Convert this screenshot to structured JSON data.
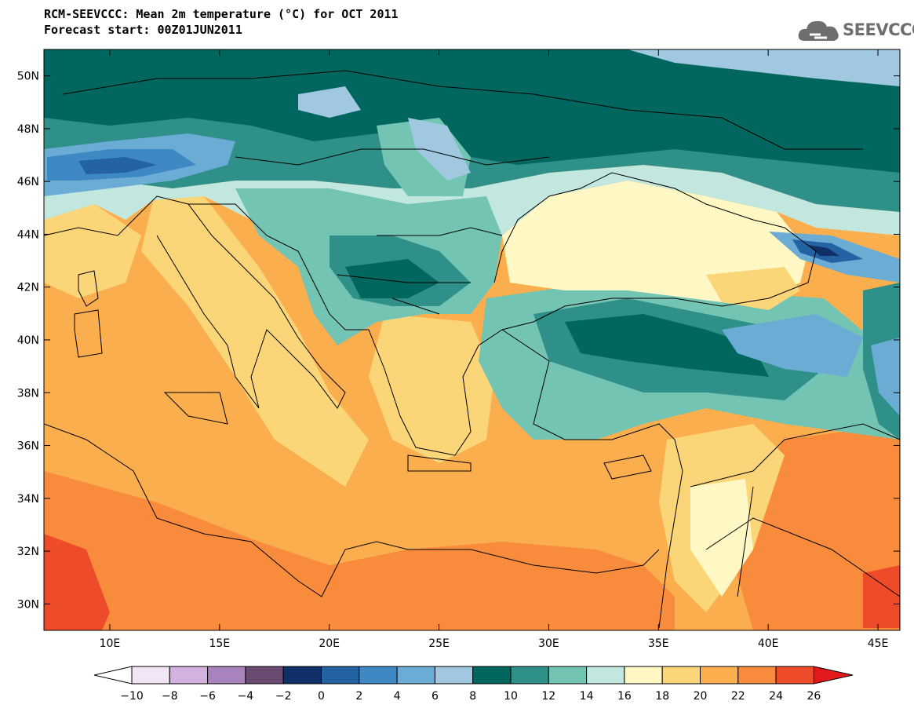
{
  "title": {
    "line1": "RCM-SEEVCCC: Mean 2m temperature (°C) for OCT 2011",
    "line2": "Forecast start: 00Z01JUN2011"
  },
  "logo": {
    "text": "SEEVCCC",
    "icon": "cloud-icon"
  },
  "map": {
    "lon_range": [
      7,
      46
    ],
    "lat_range": [
      29,
      51
    ],
    "x_ticks": [
      "10E",
      "15E",
      "20E",
      "25E",
      "30E",
      "35E",
      "40E",
      "45E"
    ],
    "y_ticks": [
      "50N",
      "48N",
      "46N",
      "44N",
      "42N",
      "40N",
      "38N",
      "36N",
      "34N",
      "32N",
      "30N"
    ]
  },
  "colorbar": {
    "labels": [
      "-10",
      "-8",
      "-6",
      "-4",
      "-2",
      "0",
      "2",
      "4",
      "6",
      "8",
      "10",
      "12",
      "14",
      "16",
      "18",
      "20",
      "22",
      "24",
      "26"
    ],
    "colors": [
      "#f1e6f5",
      "#d4b2e0",
      "#a883bd",
      "#6a4a71",
      "#0f2f66",
      "#2362a3",
      "#3e89c3",
      "#6aacd4",
      "#a0c8e0",
      "#00665e",
      "#2e9088",
      "#74c4b4",
      "#c2e7df",
      "#fff8c4",
      "#fbd679",
      "#fbae4e",
      "#f98c3c",
      "#ee4b2b"
    ],
    "low_color": "#ffffff",
    "high_color": "#e31a1c"
  }
}
